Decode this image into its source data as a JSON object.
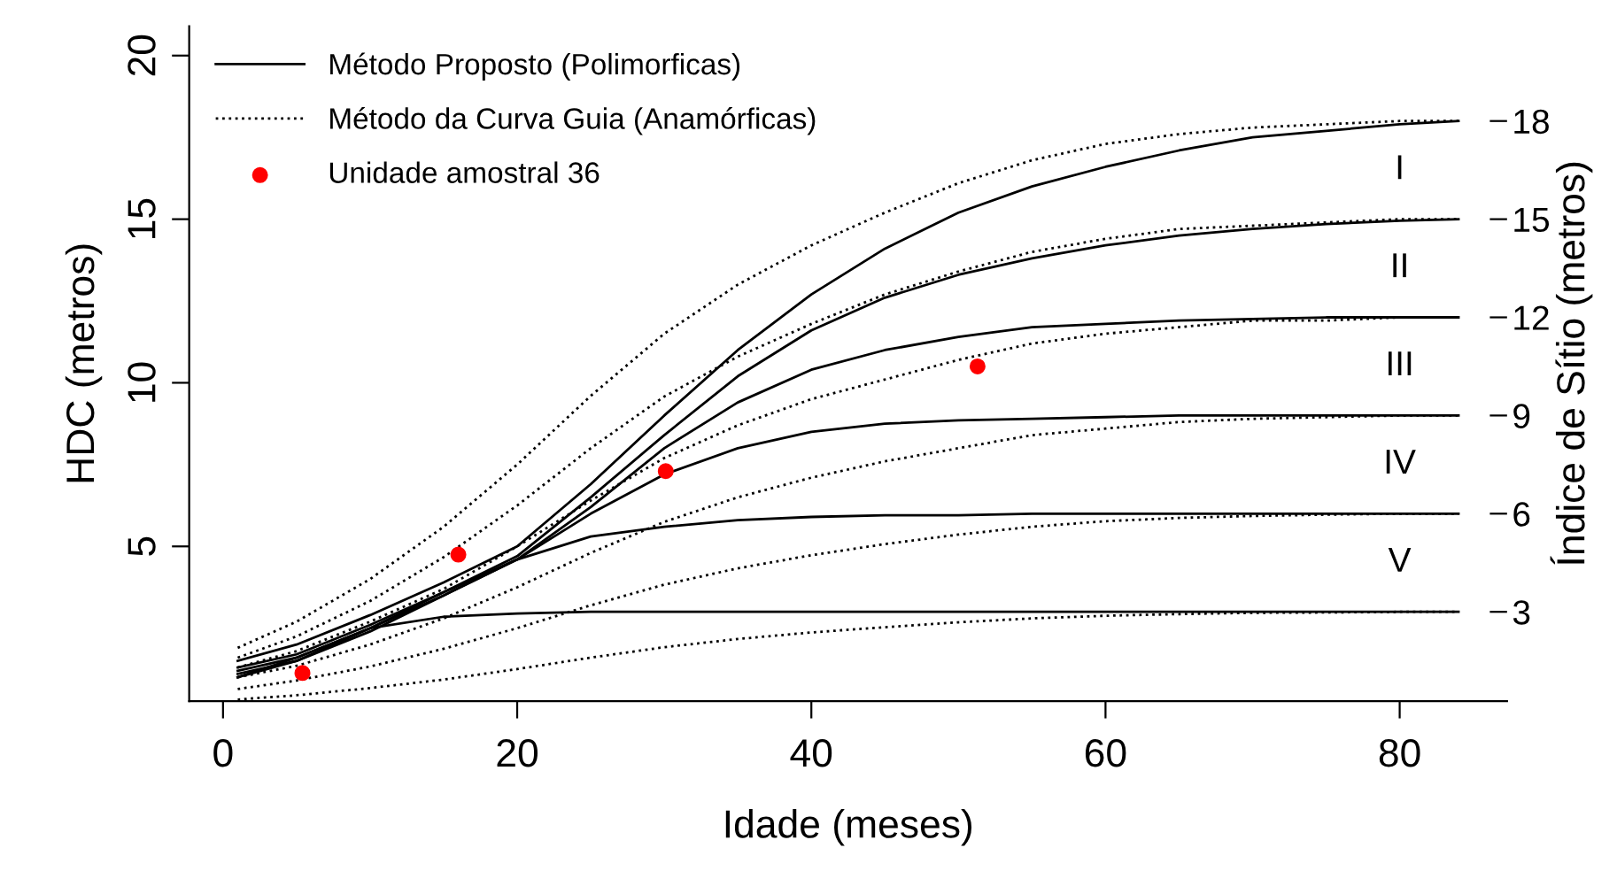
{
  "chart_data": {
    "type": "line",
    "xlabel": "Idade (meses)",
    "ylabel": "HDC (metros)",
    "y2label": "Índice de Sítio (metros)",
    "xlim": [
      -2.3,
      87.3
    ],
    "xticks": [
      0,
      20,
      40,
      60,
      80
    ],
    "ylim": [
      0.27,
      20.9
    ],
    "yticks": [
      5,
      10,
      15,
      20
    ],
    "y2lim": [
      0.27,
      20.9
    ],
    "y2ticks": [
      3,
      6,
      9,
      12,
      15,
      18
    ],
    "grid": false,
    "legend": "top left",
    "x": [
      1,
      5,
      10,
      15,
      20,
      25,
      30,
      35,
      40,
      45,
      50,
      55,
      60,
      65,
      70,
      75,
      80,
      84
    ],
    "series": [
      {
        "name": "Método Proposto (Polimorficas)",
        "color": "#000000",
        "line_style": "solid",
        "marker": "none",
        "values": [
          1.5,
          2.0,
          2.9,
          3.9,
          5.0,
          6.9,
          9.0,
          11.0,
          12.7,
          14.1,
          15.2,
          16.0,
          16.6,
          17.1,
          17.5,
          17.7,
          17.9,
          18.0
        ]
      },
      {
        "color": "#000000",
        "line_style": "solid",
        "marker": "none",
        "values": [
          1.3,
          1.7,
          2.6,
          3.6,
          4.7,
          6.5,
          8.4,
          10.2,
          11.6,
          12.6,
          13.3,
          13.8,
          14.2,
          14.5,
          14.7,
          14.85,
          14.95,
          15.0
        ]
      },
      {
        "color": "#000000",
        "line_style": "solid",
        "marker": "none",
        "values": [
          1.2,
          1.6,
          2.5,
          3.5,
          4.6,
          6.2,
          8.0,
          9.4,
          10.4,
          11.0,
          11.4,
          11.7,
          11.8,
          11.9,
          11.95,
          12.0,
          12.0,
          12.0
        ]
      },
      {
        "color": "#000000",
        "line_style": "solid",
        "marker": "none",
        "values": [
          1.1,
          1.5,
          2.4,
          3.5,
          4.6,
          6.0,
          7.2,
          8.0,
          8.5,
          8.75,
          8.85,
          8.9,
          8.95,
          9.0,
          9.0,
          9.0,
          9.0,
          9.0
        ]
      },
      {
        "color": "#000000",
        "line_style": "solid",
        "marker": "none",
        "values": [
          1.0,
          1.5,
          2.5,
          3.6,
          4.6,
          5.3,
          5.6,
          5.8,
          5.9,
          5.95,
          5.95,
          6.0,
          6.0,
          6.0,
          6.0,
          6.0,
          6.0,
          6.0
        ]
      },
      {
        "color": "#000000",
        "line_style": "solid",
        "marker": "none",
        "values": [
          1.0,
          1.6,
          2.5,
          2.85,
          2.95,
          3.0,
          3.0,
          3.0,
          3.0,
          3.0,
          3.0,
          3.0,
          3.0,
          3.0,
          3.0,
          3.0,
          3.0,
          3.0
        ]
      },
      {
        "name": "Método da Curva Guia (Anamórficas)",
        "color": "#000000",
        "line_style": "dotted",
        "marker": "none",
        "values": [
          1.9,
          2.7,
          4.0,
          5.6,
          7.5,
          9.6,
          11.5,
          13.0,
          14.2,
          15.2,
          16.1,
          16.8,
          17.3,
          17.6,
          17.8,
          17.9,
          18.0,
          18.0
        ]
      },
      {
        "color": "#000000",
        "line_style": "dotted",
        "marker": "none",
        "values": [
          1.6,
          2.25,
          3.33,
          4.67,
          6.25,
          8.0,
          9.58,
          10.8,
          11.8,
          12.7,
          13.4,
          14.0,
          14.4,
          14.7,
          14.8,
          14.9,
          15.0,
          15.0
        ]
      },
      {
        "color": "#000000",
        "line_style": "dotted",
        "marker": "none",
        "values": [
          1.3,
          1.8,
          2.7,
          3.7,
          5.0,
          6.4,
          7.7,
          8.7,
          9.5,
          10.1,
          10.7,
          11.2,
          11.5,
          11.7,
          11.9,
          11.9,
          12.0,
          12.0
        ]
      },
      {
        "color": "#000000",
        "line_style": "dotted",
        "marker": "none",
        "values": [
          1.0,
          1.35,
          2.0,
          2.8,
          3.75,
          4.8,
          5.75,
          6.5,
          7.1,
          7.6,
          8.0,
          8.4,
          8.6,
          8.8,
          8.9,
          8.95,
          9.0,
          9.0
        ]
      },
      {
        "color": "#000000",
        "line_style": "dotted",
        "marker": "none",
        "values": [
          0.64,
          0.9,
          1.33,
          1.87,
          2.5,
          3.2,
          3.83,
          4.33,
          4.73,
          5.07,
          5.36,
          5.6,
          5.77,
          5.87,
          5.93,
          5.97,
          6.0,
          6.0
        ]
      },
      {
        "color": "#000000",
        "line_style": "dotted",
        "marker": "none",
        "values": [
          0.32,
          0.45,
          0.67,
          0.93,
          1.25,
          1.6,
          1.92,
          2.17,
          2.37,
          2.53,
          2.68,
          2.8,
          2.88,
          2.93,
          2.97,
          2.98,
          3.0,
          3.0
        ]
      },
      {
        "name": "Unidade amostral 36",
        "type": "scatter",
        "color": "#ff0000",
        "marker": "circle",
        "x": [
          5.4,
          16.0,
          30.1,
          51.3
        ],
        "values": [
          1.13,
          4.75,
          7.3,
          10.5
        ]
      }
    ],
    "annotations": [
      "I",
      "II",
      "III",
      "IV",
      "V"
    ]
  }
}
